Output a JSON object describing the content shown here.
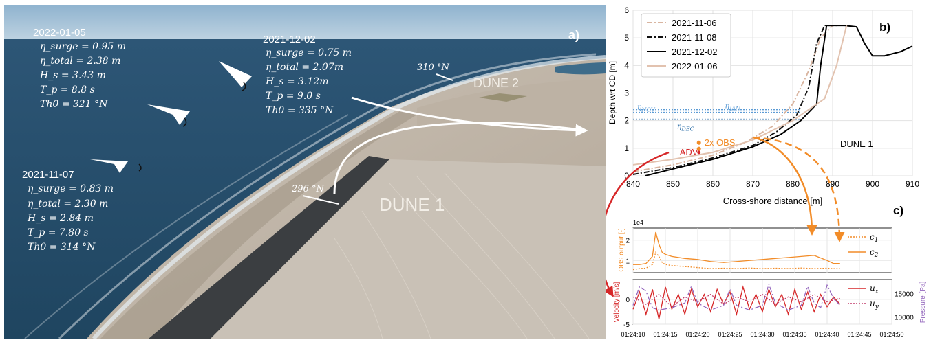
{
  "panel_a": {
    "label": "a)",
    "events": [
      {
        "date": "2022-01-05",
        "lines": [
          "η_surge = 0.95 m",
          "η_total = 2.38 m",
          "H_s = 3.43 m",
          "T_p = 8.8 s",
          "Th0 = 321 °N"
        ]
      },
      {
        "date": "2021-12-02",
        "lines": [
          "η_surge = 0.75 m",
          "η_total = 2.07m",
          "H_s = 3.12m",
          "T_p = 9.0 s",
          "Th0 = 335 °N"
        ]
      },
      {
        "date": "2021-11-07",
        "lines": [
          "η_surge = 0.83 m",
          "η_total = 2.30 m",
          "H_s = 2.84 m",
          "T_p = 7.80 s",
          "Th0 = 314 °N"
        ]
      }
    ],
    "bearings": [
      "310 °N",
      "296 °N"
    ],
    "dune_labels": [
      "DUNE 2",
      "DUNE 1"
    ]
  },
  "chart_data": [
    {
      "panel": "b)",
      "type": "line",
      "xlabel": "Cross-shore distance [m]",
      "ylabel": "Depth wrt CD [m]",
      "xlim": [
        840,
        910
      ],
      "ylim": [
        0,
        6
      ],
      "xticks": [
        840,
        850,
        860,
        870,
        880,
        890,
        900,
        910
      ],
      "yticks": [
        0,
        1,
        2,
        3,
        4,
        5,
        6
      ],
      "grid": true,
      "legend_position": "top-left",
      "series": [
        {
          "name": "2021-11-06",
          "color": "#d9b5a0",
          "dash": "dashdot",
          "x": [
            840,
            850,
            860,
            868,
            875,
            880,
            884,
            887,
            890
          ],
          "y": [
            0.15,
            0.4,
            0.75,
            1.2,
            1.8,
            2.6,
            3.8,
            5.0,
            5.45
          ]
        },
        {
          "name": "2021-11-08",
          "color": "#111111",
          "dash": "dashdot",
          "x": [
            840,
            850,
            860,
            870,
            876,
            881,
            884,
            886,
            888,
            891
          ],
          "y": [
            0.05,
            0.3,
            0.65,
            1.1,
            1.6,
            2.2,
            3.2,
            4.8,
            5.45,
            5.45
          ]
        },
        {
          "name": "2021-12-02",
          "color": "#000000",
          "dash": "solid",
          "x": [
            843,
            850,
            860,
            870,
            877,
            882,
            886,
            887,
            888.5,
            893,
            896,
            898,
            900,
            903,
            907,
            910
          ],
          "y": [
            0.0,
            0.25,
            0.6,
            1.05,
            1.5,
            2.0,
            2.6,
            4.0,
            5.45,
            5.45,
            5.4,
            4.8,
            4.35,
            4.35,
            4.5,
            4.7
          ]
        },
        {
          "name": "2022-01-06",
          "color": "#e2c2af",
          "dash": "solid",
          "x": [
            840,
            850,
            860,
            870,
            880,
            888,
            891,
            893.5
          ],
          "y": [
            0.4,
            0.6,
            0.85,
            1.3,
            2.0,
            2.8,
            4.0,
            5.45
          ]
        }
      ],
      "hlines": [
        {
          "label": "η_NOV",
          "y": 2.3,
          "color": "#5b9bd5"
        },
        {
          "label": "η_JAN",
          "y": 2.4,
          "color": "#5b9bd5"
        },
        {
          "label": "η_DEC",
          "y": 2.05,
          "color": "#2e6fa8"
        }
      ],
      "annotations": [
        {
          "text": "ADV",
          "x": 856.5,
          "y": 0.85,
          "color": "#d62728"
        },
        {
          "text": "2x OBS",
          "x": 856.5,
          "y": 1.2,
          "color": "#f28c28"
        },
        {
          "text": "DUNE 1",
          "x": 896,
          "y": 1.05,
          "color": "#000000"
        }
      ]
    },
    {
      "panel": "c)",
      "type": "line",
      "ylabel": "OBS output [-]",
      "y_multiplier": "1e4",
      "yticks": [
        1,
        2
      ],
      "ylim": [
        0.4,
        2.6
      ],
      "grid": true,
      "legend_position": "right",
      "series": [
        {
          "name": "c_1",
          "color": "#f28c28",
          "dash": "dotted",
          "t": [
            10,
            11,
            12,
            13,
            13.5,
            14,
            14.5,
            15,
            16,
            18,
            20,
            22,
            24,
            26,
            28,
            30,
            32,
            34,
            36,
            38,
            40,
            41,
            42
          ],
          "y": [
            0.55,
            0.6,
            0.62,
            0.8,
            1.4,
            1.2,
            0.9,
            0.8,
            0.75,
            0.7,
            0.65,
            0.6,
            0.62,
            0.6,
            0.63,
            0.6,
            0.62,
            0.6,
            0.63,
            0.6,
            0.62,
            0.6,
            0.6
          ]
        },
        {
          "name": "c_2",
          "color": "#f28c28",
          "dash": "solid",
          "t": [
            10,
            11,
            12,
            13,
            13.5,
            14,
            14.5,
            15,
            16,
            18,
            20,
            22,
            24,
            26,
            28,
            30,
            32,
            34,
            36,
            38,
            40,
            41,
            42
          ],
          "y": [
            0.8,
            0.8,
            0.85,
            1.2,
            2.4,
            1.8,
            1.4,
            1.3,
            1.2,
            1.1,
            1.05,
            0.95,
            0.9,
            0.95,
            1.0,
            1.05,
            1.1,
            1.15,
            1.2,
            1.25,
            1.0,
            0.85,
            0.85
          ]
        }
      ]
    },
    {
      "panel": "c)",
      "type": "line",
      "ylabel": "Velocity [m/s]",
      "ylabel_right": "Pressure [Pa]",
      "xlabel": "",
      "xticks": [
        "01:24:10",
        "01:24:15",
        "01:24:20",
        "01:24:25",
        "01:24:30",
        "01:24:35",
        "01:24:40",
        "01:24:45",
        "01:24:50"
      ],
      "yticks": [
        -5,
        0
      ],
      "yticks_right": [
        10000,
        15000
      ],
      "ylim": [
        -5,
        4
      ],
      "ylim_right": [
        8500,
        18000
      ],
      "grid": true,
      "legend_position": "right",
      "series": [
        {
          "name": "u_x",
          "color": "#d62728",
          "dash": "solid",
          "t": [
            10,
            11,
            12,
            13,
            14,
            15,
            16,
            17,
            18,
            19,
            20,
            21,
            22,
            23,
            24,
            25,
            26,
            27,
            28,
            29,
            30,
            31,
            32,
            33,
            34,
            35,
            36,
            37,
            38,
            39,
            40,
            41,
            42
          ],
          "y": [
            -2,
            1.5,
            -3,
            2,
            -4,
            2.5,
            -2,
            1,
            -3,
            2,
            -1.5,
            1,
            -2.5,
            2,
            -1,
            1.5,
            -3,
            2.5,
            -2,
            1,
            -2.5,
            2,
            -1.5,
            1,
            -3,
            2,
            -2,
            1.5,
            -2.5,
            1,
            -1.5,
            0.5,
            -1
          ]
        },
        {
          "name": "u_y",
          "color": "#c23b6b",
          "dash": "dotted",
          "t": [
            10,
            12,
            14,
            16,
            18,
            20,
            22,
            24,
            26,
            28,
            30,
            32,
            34,
            36,
            38,
            40,
            42
          ],
          "y": [
            0.5,
            -1,
            1,
            -1.5,
            0.5,
            -0.5,
            1,
            -1,
            0.5,
            -0.5,
            1,
            -1,
            0.5,
            -0.5,
            1,
            -0.5,
            0.2
          ]
        },
        {
          "name": "Pressure",
          "axis": "right",
          "color": "#9467bd",
          "dash": "dashdot",
          "t": [
            10,
            11,
            12,
            13,
            14,
            16,
            18,
            19,
            20,
            22,
            24,
            25,
            26,
            28,
            30,
            31,
            32,
            34,
            36,
            37,
            38,
            39,
            40,
            41,
            42
          ],
          "y": [
            12500,
            16500,
            15500,
            12000,
            11500,
            12000,
            13000,
            16500,
            13000,
            11500,
            12500,
            16000,
            12500,
            11500,
            12500,
            17000,
            13000,
            11500,
            12500,
            16500,
            13000,
            12000,
            16800,
            14000,
            12500
          ]
        }
      ]
    }
  ]
}
